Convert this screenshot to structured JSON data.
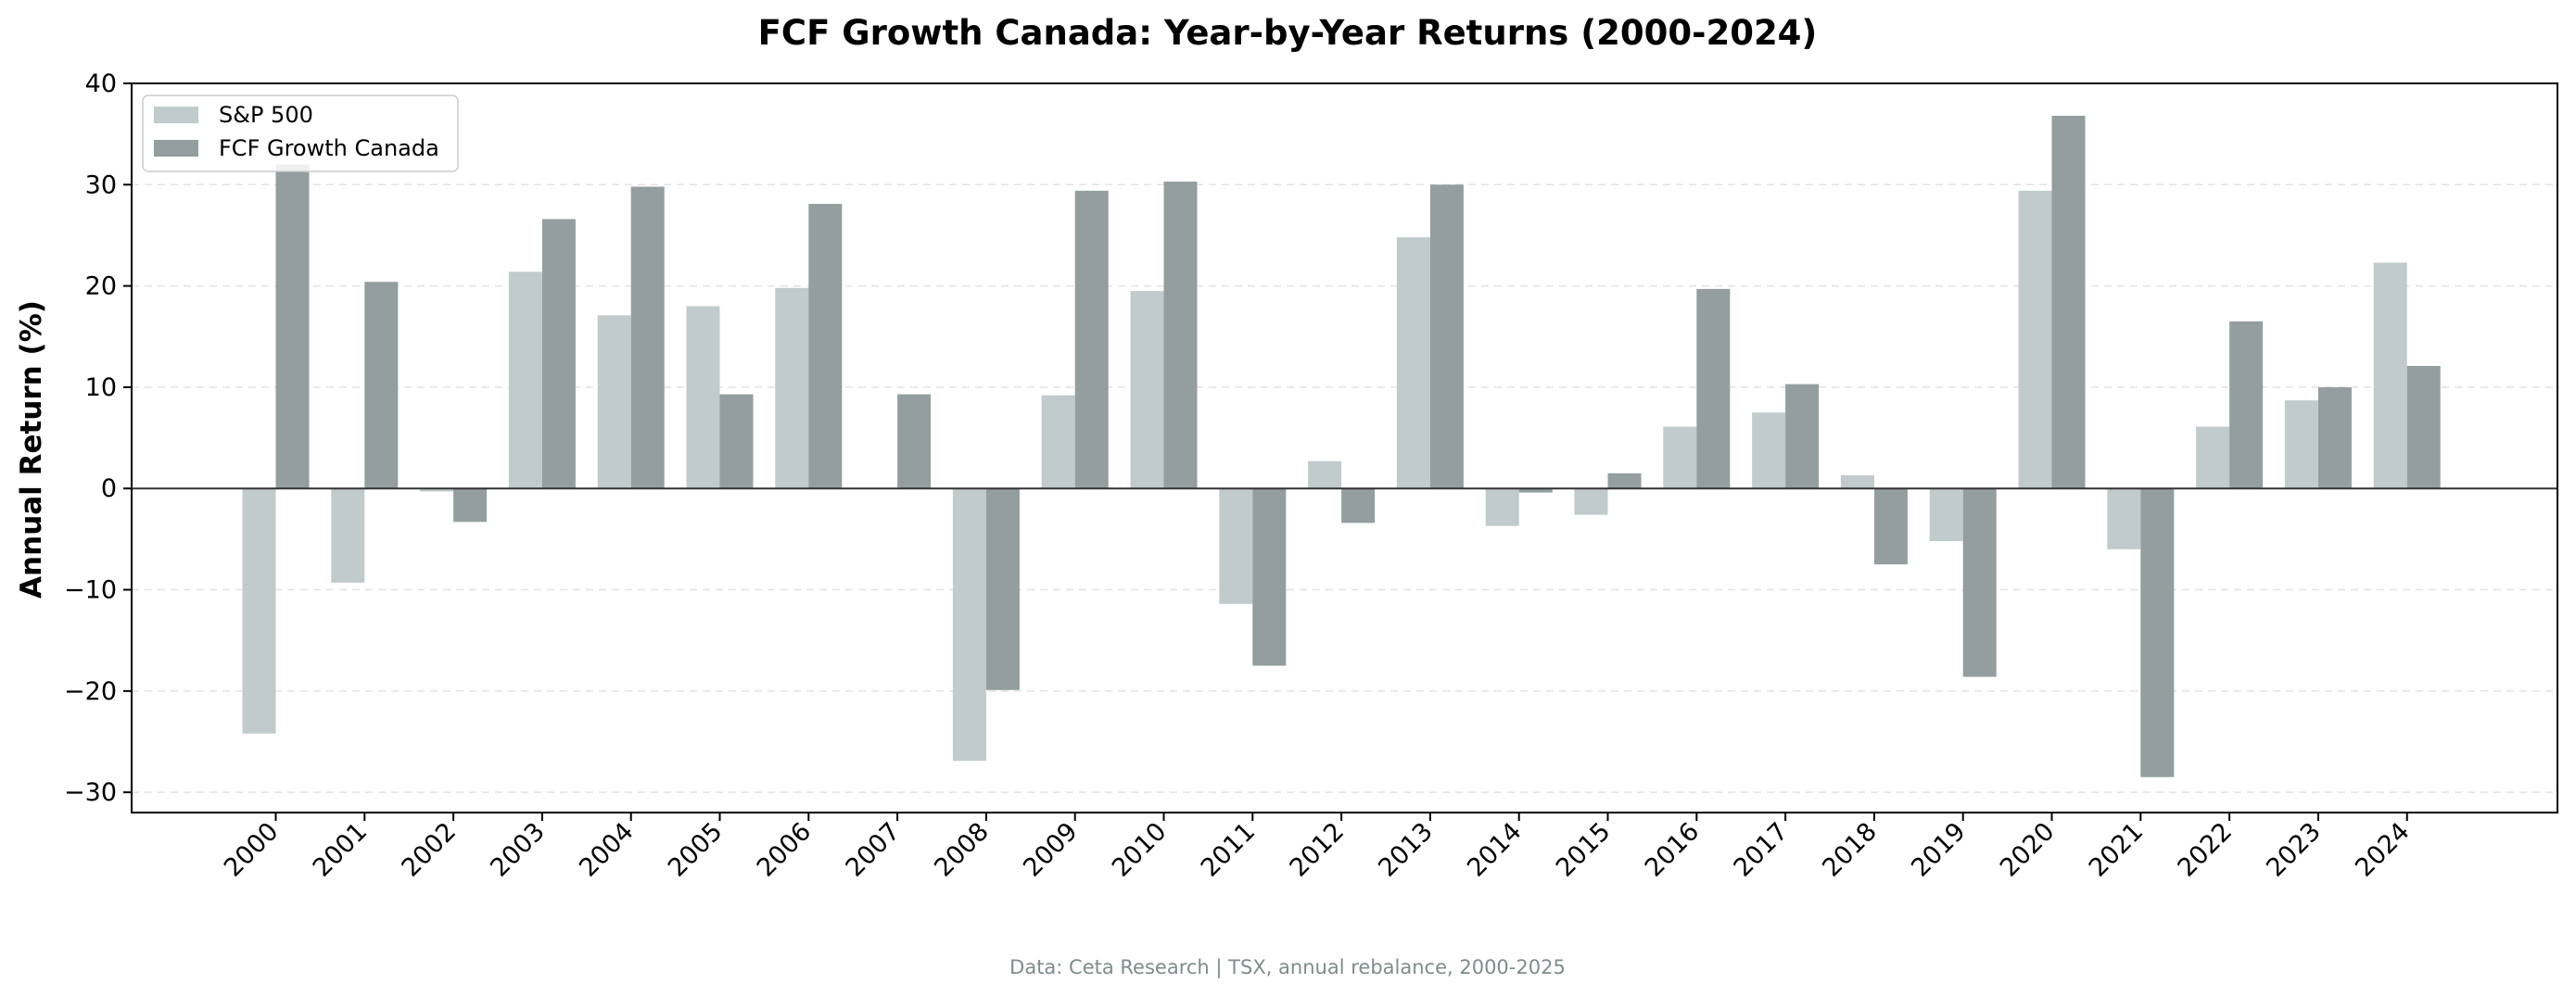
{
  "chart_data": {
    "type": "bar",
    "title": "FCF Growth Canada: Year-by-Year Returns (2000-2024)",
    "xlabel": "",
    "ylabel": "Annual Return (%)",
    "ylim": [
      -32,
      40
    ],
    "yticks": [
      40,
      30,
      20,
      10,
      0,
      -10,
      -20,
      -30
    ],
    "ytick_labels": [
      "40",
      "30",
      "20",
      "10",
      "0",
      "−10",
      "−20",
      "−30"
    ],
    "grid": "horizontal dashed",
    "legend_position": "top-left",
    "categories": [
      "2000",
      "2001",
      "2002",
      "2003",
      "2004",
      "2005",
      "2006",
      "2007",
      "2008",
      "2009",
      "2010",
      "2011",
      "2012",
      "2013",
      "2014",
      "2015",
      "2016",
      "2017",
      "2018",
      "2019",
      "2020",
      "2021",
      "2022",
      "2023",
      "2024"
    ],
    "series": [
      {
        "name": "S&P 500",
        "color": "#c2cbcb",
        "values": [
          -24.2,
          -9.3,
          -0.3,
          21.4,
          17.1,
          18.0,
          19.8,
          0.0,
          -26.9,
          9.2,
          19.5,
          -11.4,
          2.7,
          24.8,
          -3.7,
          -2.6,
          6.1,
          7.5,
          1.3,
          -5.2,
          29.4,
          -6.0,
          6.1,
          8.7,
          22.3
        ]
      },
      {
        "name": "FCF Growth Canada",
        "color": "#949e9e",
        "values": [
          32.0,
          20.4,
          -3.3,
          26.6,
          29.8,
          9.3,
          28.1,
          9.3,
          -19.9,
          29.4,
          30.3,
          -17.5,
          -3.4,
          30.0,
          -0.4,
          1.5,
          19.7,
          10.3,
          -7.5,
          -18.6,
          36.8,
          -28.5,
          16.5,
          10.0,
          12.1
        ]
      }
    ],
    "source_note": "Data: Ceta Research | TSX, annual rebalance, 2000-2025"
  }
}
